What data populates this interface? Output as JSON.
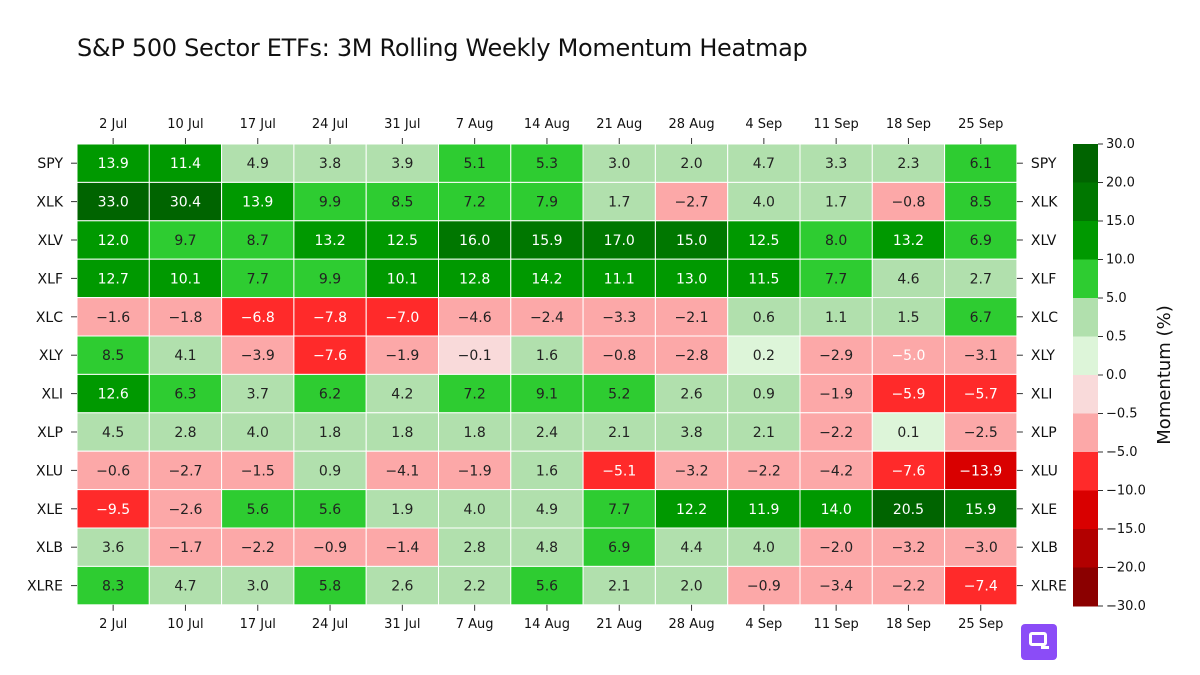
{
  "title": "S&P 500 Sector ETFs: 3M Rolling Weekly Momentum Heatmap",
  "colorbar": {
    "label": "Momentum (%)",
    "ticks": [
      "30.0",
      "20.0",
      "15.0",
      "10.0",
      "5.0",
      "0.5",
      "0.0",
      "−0.5",
      "−5.0",
      "−10.0",
      "−15.0",
      "−20.0",
      "−30.0"
    ],
    "bins": [
      {
        "min": -30,
        "max": -20,
        "color": "#8b0000"
      },
      {
        "min": -20,
        "max": -15,
        "color": "#b20000"
      },
      {
        "min": -15,
        "max": -10,
        "color": "#d90000"
      },
      {
        "min": -10,
        "max": -5,
        "color": "#ff2a2a"
      },
      {
        "min": -5,
        "max": -0.5,
        "color": "#fca8a8"
      },
      {
        "min": -0.5,
        "max": 0,
        "color": "#f9dada"
      },
      {
        "min": 0,
        "max": 0.5,
        "color": "#ddf5d9"
      },
      {
        "min": 0.5,
        "max": 5,
        "color": "#b1e0ad"
      },
      {
        "min": 5,
        "max": 10,
        "color": "#2ecc31"
      },
      {
        "min": 10,
        "max": 15,
        "color": "#009900"
      },
      {
        "min": 15,
        "max": 20,
        "color": "#007700"
      },
      {
        "min": 20,
        "max": 30,
        "color": "#006400"
      }
    ]
  },
  "logo": {
    "icon": "chat-bubble-icon",
    "color": "#8b4cf7"
  },
  "chart_data": {
    "type": "heatmap",
    "title": "S&P 500 Sector ETFs: 3M Rolling Weekly Momentum Heatmap",
    "x_labels": [
      "2 Jul",
      "10 Jul",
      "17 Jul",
      "24 Jul",
      "31 Jul",
      "7 Aug",
      "14 Aug",
      "21 Aug",
      "28 Aug",
      "4 Sep",
      "11 Sep",
      "18 Sep",
      "25 Sep"
    ],
    "y_labels": [
      "SPY",
      "XLK",
      "XLV",
      "XLF",
      "XLC",
      "XLY",
      "XLI",
      "XLP",
      "XLU",
      "XLE",
      "XLB",
      "XLRE"
    ],
    "values": [
      [
        13.9,
        11.4,
        4.9,
        3.8,
        3.9,
        5.1,
        5.3,
        3.0,
        2.0,
        4.7,
        3.3,
        2.3,
        6.1
      ],
      [
        33.0,
        30.4,
        13.9,
        9.9,
        8.5,
        7.2,
        7.9,
        1.7,
        -2.7,
        4.0,
        1.7,
        -0.8,
        8.5
      ],
      [
        12.0,
        9.7,
        8.7,
        13.2,
        12.5,
        16.0,
        15.9,
        17.0,
        15.0,
        12.5,
        8.0,
        13.2,
        6.9
      ],
      [
        12.7,
        10.1,
        7.7,
        9.9,
        10.1,
        12.8,
        14.2,
        11.1,
        13.0,
        11.5,
        7.7,
        4.6,
        2.7
      ],
      [
        -1.6,
        -1.8,
        -6.8,
        -7.8,
        -7.0,
        -4.6,
        -2.4,
        -3.3,
        -2.1,
        0.6,
        1.1,
        1.5,
        6.7
      ],
      [
        8.5,
        4.1,
        -3.9,
        -7.6,
        -1.9,
        -0.1,
        1.6,
        -0.8,
        -2.8,
        0.2,
        -2.9,
        -5.0,
        -3.1
      ],
      [
        12.6,
        6.3,
        3.7,
        6.2,
        4.2,
        7.2,
        9.1,
        5.2,
        2.6,
        0.9,
        -1.9,
        -5.9,
        -5.7
      ],
      [
        4.5,
        2.8,
        4.0,
        1.8,
        1.8,
        1.8,
        2.4,
        2.1,
        3.8,
        2.1,
        -2.2,
        0.1,
        -2.5
      ],
      [
        -0.6,
        -2.7,
        -1.5,
        0.9,
        -4.1,
        -1.9,
        1.6,
        -5.1,
        -3.2,
        -2.2,
        -4.2,
        -7.6,
        -13.9
      ],
      [
        -9.5,
        -2.6,
        5.6,
        5.6,
        1.9,
        4.0,
        4.9,
        7.7,
        12.2,
        11.9,
        14.0,
        20.5,
        15.9
      ],
      [
        3.6,
        -1.7,
        -2.2,
        -0.9,
        -1.4,
        2.8,
        4.8,
        6.9,
        4.4,
        4.0,
        -2.0,
        -3.2,
        -3.0
      ],
      [
        8.3,
        4.7,
        3.0,
        5.8,
        2.6,
        2.2,
        5.6,
        2.1,
        2.0,
        -0.9,
        -3.4,
        -2.2,
        -7.4
      ]
    ],
    "colorbar_label": "Momentum (%)",
    "colorbar_range": [
      -30,
      30
    ]
  }
}
